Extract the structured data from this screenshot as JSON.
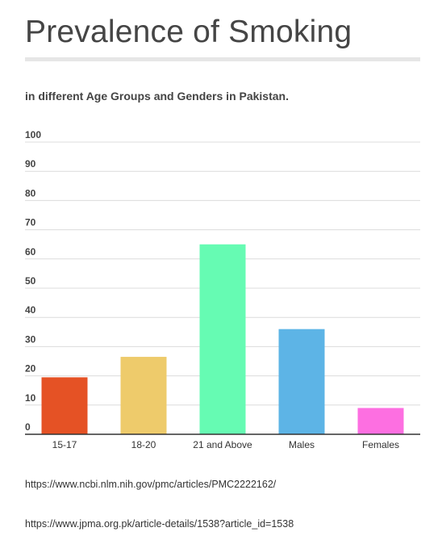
{
  "title": "Prevalence of Smoking",
  "subtitle": "in different Age Groups and Genders in Pakistan.",
  "sources": [
    "https://www.ncbi.nlm.nih.gov/pmc/articles/PMC2222162/",
    "https://www.jpma.org.pk/article-details/1538?article_id=1538"
  ],
  "chart_data": {
    "type": "bar",
    "categories": [
      "15-17",
      "18-20",
      "21 and Above",
      "Males",
      "Females"
    ],
    "values": [
      19.5,
      26.5,
      65,
      36,
      9
    ],
    "colors": [
      "#e55225",
      "#eecb6b",
      "#66fbb3",
      "#5db4e6",
      "#fd6fe1"
    ],
    "ylim": [
      0,
      100
    ],
    "yticks": [
      0,
      10,
      20,
      30,
      40,
      50,
      60,
      70,
      80,
      90,
      100
    ],
    "grid": true,
    "title": "",
    "xlabel": "",
    "ylabel": ""
  }
}
